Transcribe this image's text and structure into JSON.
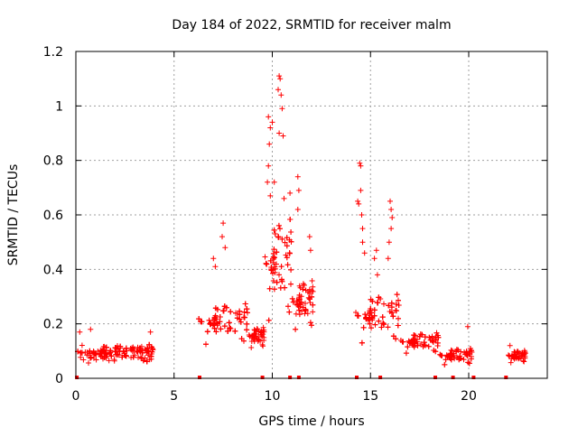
{
  "chart_data": {
    "type": "scatter",
    "title": "Day 184 of 2022, SRMTID for receiver malm",
    "xlabel": "GPS time / hours",
    "ylabel": "SRMTID / TECUs",
    "xlim": [
      0,
      24
    ],
    "ylim": [
      0,
      1.2
    ],
    "xticks": [
      0,
      5,
      10,
      15,
      20
    ],
    "xtick_labels": [
      "0",
      "5",
      "10",
      "15",
      "20"
    ],
    "yticks": [
      0,
      0.2,
      0.4,
      0.6,
      0.8,
      1.0,
      1.2
    ],
    "ytick_labels": [
      "0",
      "0.2",
      "0.4",
      "0.6",
      "0.8",
      "1",
      "1.2"
    ],
    "grid": true,
    "marker": "plus",
    "color": "#ff0000",
    "segments": [
      {
        "start": 0.0,
        "end": 4.0,
        "base": 0.09,
        "spread": 0.045,
        "density": 90
      },
      {
        "start": 6.2,
        "end": 8.8,
        "base": 0.2,
        "spread": 0.1,
        "density": 70
      },
      {
        "start": 8.8,
        "end": 9.6,
        "base": 0.15,
        "spread": 0.05,
        "density": 60
      },
      {
        "start": 9.6,
        "end": 11.0,
        "base": 0.4,
        "spread": 0.25,
        "density": 90
      },
      {
        "start": 11.0,
        "end": 12.1,
        "base": 0.27,
        "spread": 0.12,
        "density": 70
      },
      {
        "start": 14.2,
        "end": 16.5,
        "base": 0.22,
        "spread": 0.12,
        "density": 70
      },
      {
        "start": 16.5,
        "end": 18.5,
        "base": 0.13,
        "spread": 0.05,
        "density": 70
      },
      {
        "start": 18.5,
        "end": 20.2,
        "base": 0.08,
        "spread": 0.04,
        "density": 60
      },
      {
        "start": 22.0,
        "end": 22.9,
        "base": 0.08,
        "spread": 0.03,
        "density": 70
      }
    ],
    "notable_points": [
      {
        "x": 10.35,
        "y": 1.11
      },
      {
        "x": 10.4,
        "y": 1.1
      },
      {
        "x": 10.3,
        "y": 1.06
      },
      {
        "x": 10.45,
        "y": 1.04
      },
      {
        "x": 10.5,
        "y": 0.99
      },
      {
        "x": 10.35,
        "y": 0.9
      },
      {
        "x": 10.55,
        "y": 0.89
      },
      {
        "x": 9.8,
        "y": 0.96
      },
      {
        "x": 9.9,
        "y": 0.92
      },
      {
        "x": 9.85,
        "y": 0.86
      },
      {
        "x": 10.0,
        "y": 0.94
      },
      {
        "x": 9.8,
        "y": 0.78
      },
      {
        "x": 9.75,
        "y": 0.72
      },
      {
        "x": 9.9,
        "y": 0.67
      },
      {
        "x": 10.1,
        "y": 0.72
      },
      {
        "x": 10.6,
        "y": 0.66
      },
      {
        "x": 10.9,
        "y": 0.68
      },
      {
        "x": 11.3,
        "y": 0.74
      },
      {
        "x": 11.35,
        "y": 0.69
      },
      {
        "x": 11.3,
        "y": 0.62
      },
      {
        "x": 11.9,
        "y": 0.52
      },
      {
        "x": 11.95,
        "y": 0.47
      },
      {
        "x": 7.5,
        "y": 0.57
      },
      {
        "x": 7.45,
        "y": 0.52
      },
      {
        "x": 7.6,
        "y": 0.48
      },
      {
        "x": 7.0,
        "y": 0.44
      },
      {
        "x": 7.1,
        "y": 0.41
      },
      {
        "x": 14.45,
        "y": 0.79
      },
      {
        "x": 14.5,
        "y": 0.78
      },
      {
        "x": 14.5,
        "y": 0.69
      },
      {
        "x": 14.35,
        "y": 0.65
      },
      {
        "x": 14.4,
        "y": 0.64
      },
      {
        "x": 14.55,
        "y": 0.6
      },
      {
        "x": 14.6,
        "y": 0.55
      },
      {
        "x": 14.6,
        "y": 0.5
      },
      {
        "x": 15.3,
        "y": 0.47
      },
      {
        "x": 15.2,
        "y": 0.44
      },
      {
        "x": 15.35,
        "y": 0.38
      },
      {
        "x": 16.0,
        "y": 0.65
      },
      {
        "x": 16.05,
        "y": 0.62
      },
      {
        "x": 16.1,
        "y": 0.59
      },
      {
        "x": 16.05,
        "y": 0.55
      },
      {
        "x": 15.95,
        "y": 0.5
      },
      {
        "x": 15.9,
        "y": 0.44
      },
      {
        "x": 14.7,
        "y": 0.46
      },
      {
        "x": 19.95,
        "y": 0.19
      },
      {
        "x": 22.1,
        "y": 0.12
      },
      {
        "x": 0.75,
        "y": 0.18
      },
      {
        "x": 0.2,
        "y": 0.17
      },
      {
        "x": 3.8,
        "y": 0.17
      }
    ],
    "zero_points": [
      0.05,
      6.3,
      9.5,
      10.9,
      11.35,
      14.3,
      15.5,
      18.3,
      19.2,
      20.25,
      21.9
    ]
  }
}
